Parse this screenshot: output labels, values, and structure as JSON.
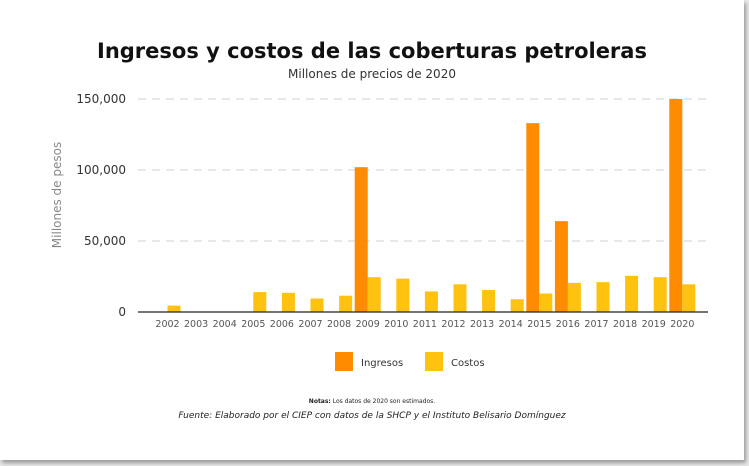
{
  "colors": {
    "ingresos": "#ff8c00",
    "costos": "#ffc20e",
    "grid": "#d9d9d9",
    "axis": "#222222"
  },
  "chart_data": {
    "type": "bar",
    "title": "Ingresos y costos de las coberturas petroleras",
    "subtitle": "Millones de precios de 2020",
    "ylabel": "Millones de pesos",
    "xlabel": "",
    "ylim": [
      0,
      150000
    ],
    "yticks": [
      "0",
      "50,000",
      "100,000",
      "150,000"
    ],
    "ytick_values": [
      0,
      50000,
      100000,
      150000
    ],
    "categories": [
      "2002",
      "2003",
      "2004",
      "2005",
      "2006",
      "2007",
      "2008",
      "2009",
      "2010",
      "2011",
      "2012",
      "2013",
      "2014",
      "2015",
      "2016",
      "2017",
      "2018",
      "2019",
      "2020"
    ],
    "series": [
      {
        "name": "Ingresos",
        "color": "#ff8c00",
        "values": [
          0,
          0,
          0,
          0,
          0,
          0,
          0,
          102000,
          0,
          0,
          0,
          0,
          0,
          133000,
          64000,
          0,
          0,
          0,
          150000
        ]
      },
      {
        "name": "Costos",
        "color": "#ffc20e",
        "values": [
          4500,
          0,
          0,
          14000,
          13500,
          9500,
          11500,
          24500,
          23500,
          14500,
          19500,
          15500,
          9000,
          13000,
          20500,
          21000,
          25500,
          24500,
          19500
        ]
      }
    ],
    "legend_position": "bottom",
    "grid": true,
    "notes_label": "Notas:",
    "notes_text": " Los datos de 2020 son estimados.",
    "source": "Fuente: Elaborado por el CIEP con datos de la SHCP y el Instituto Belisario Domínguez"
  }
}
